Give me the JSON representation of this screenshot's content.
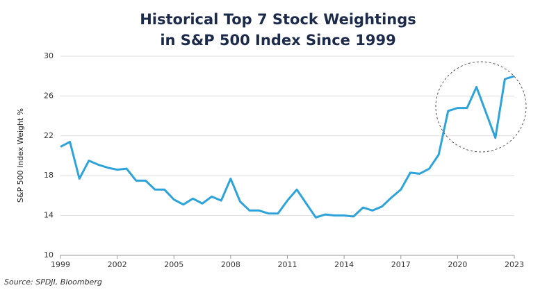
{
  "chart_data": {
    "type": "line",
    "title": [
      "Historical Top 7 Stock Weightings",
      "in S&P 500 Index Since 1999"
    ],
    "y_label": "S&P 500 Index Weight %",
    "source": "Source: SPDJI, Bloomberg",
    "x": [
      1999,
      1999.5,
      2000,
      2000.5,
      2001,
      2001.5,
      2002,
      2002.5,
      2003,
      2003.5,
      2004,
      2004.5,
      2005,
      2005.5,
      2006,
      2006.5,
      2007,
      2007.5,
      2008,
      2008.5,
      2009,
      2009.5,
      2010,
      2010.5,
      2011,
      2011.5,
      2012,
      2012.5,
      2013,
      2013.5,
      2014,
      2014.5,
      2015,
      2015.5,
      2016,
      2016.5,
      2017,
      2017.5,
      2018,
      2018.5,
      2019,
      2019.5,
      2020,
      2020.5,
      2021,
      2022,
      2022.5,
      2023
    ],
    "series": [
      {
        "name": "Top 7 weight",
        "color": "#2ea3d9",
        "values": [
          20.9,
          21.4,
          17.7,
          19.5,
          19.1,
          18.8,
          18.6,
          18.7,
          17.5,
          17.5,
          16.6,
          16.6,
          15.6,
          15.1,
          15.7,
          15.2,
          15.9,
          15.5,
          17.7,
          15.4,
          14.5,
          14.5,
          14.2,
          14.2,
          15.5,
          16.6,
          15.2,
          13.8,
          14.1,
          14.0,
          14.0,
          13.9,
          14.8,
          14.5,
          14.9,
          15.8,
          16.6,
          18.3,
          18.2,
          18.7,
          20.1,
          24.5,
          24.8,
          24.8,
          26.9,
          21.8,
          27.7,
          28.0
        ]
      }
    ],
    "xlim": [
      1999,
      2023
    ],
    "xticks": [
      1999,
      2002,
      2005,
      2008,
      2011,
      2014,
      2017,
      2020,
      2023
    ],
    "ylim": [
      10,
      30
    ],
    "yticks": [
      10,
      14,
      18,
      22,
      26,
      30
    ],
    "grid": true
  }
}
